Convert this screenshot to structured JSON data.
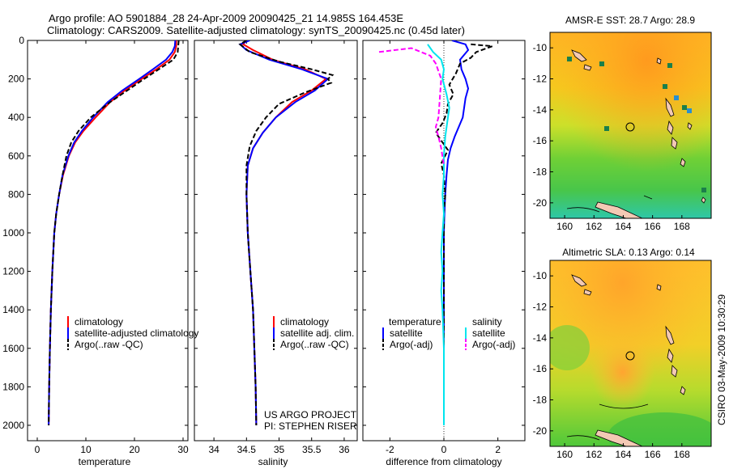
{
  "header": {
    "title_line1": "Argo profile: AO 5901884_28 24-Apr-2009 20090425_21 14.985S 164.453E",
    "title_line2": "Climatology: CARS2009. Satellite-adjusted climatology: synTS_20090425.nc (0.45d later)"
  },
  "side_label": "CSIRO 03-May-2009 10:30:29",
  "project": {
    "line1": "US ARGO PROJECT",
    "line2": "PI: STEPHEN RISER"
  },
  "colors": {
    "climatology": "#ff0000",
    "satellite": "#0000ff",
    "argo": "#000000",
    "satellite_diff_salinity": "#00e5ee",
    "argo_diff_salinity": "#ff00ff"
  },
  "chart_data": [
    {
      "type": "line",
      "id": "temperature",
      "xlabel": "temperature",
      "ylabel": "",
      "xlim": [
        -2,
        31
      ],
      "ylim": [
        2080,
        0
      ],
      "xticks": [
        "0",
        "10",
        "20",
        "30"
      ],
      "yticks": [
        "0",
        "200",
        "400",
        "600",
        "800",
        "1000",
        "1200",
        "1400",
        "1600",
        "1800",
        "2000"
      ],
      "legend": [
        {
          "label": "climatology",
          "color": "#ff0000",
          "dash": "solid"
        },
        {
          "label": "satellite-adjusted climatology",
          "color": "#0000ff",
          "dash": "solid"
        },
        {
          "label": "Argo(..raw -QC)",
          "color": "#000000",
          "dash": "dashed"
        }
      ],
      "series": [
        {
          "name": "climatology",
          "color": "#ff0000",
          "dash": "solid",
          "points": [
            [
              28.6,
              0
            ],
            [
              28.6,
              30
            ],
            [
              28.3,
              60
            ],
            [
              27.2,
              100
            ],
            [
              24.5,
              150
            ],
            [
              21.5,
              200
            ],
            [
              18,
              260
            ],
            [
              15,
              320
            ],
            [
              12,
              400
            ],
            [
              9.5,
              470
            ],
            [
              7.8,
              530
            ],
            [
              6.5,
              600
            ],
            [
              5.3,
              700
            ],
            [
              4.5,
              800
            ],
            [
              3.9,
              900
            ],
            [
              3.5,
              1000
            ],
            [
              3.1,
              1200
            ],
            [
              2.8,
              1400
            ],
            [
              2.6,
              1600
            ],
            [
              2.45,
              1800
            ],
            [
              2.35,
              2000
            ]
          ]
        },
        {
          "name": "satellite",
          "color": "#0000ff",
          "dash": "solid",
          "points": [
            [
              28.4,
              0
            ],
            [
              28.3,
              30
            ],
            [
              27.8,
              60
            ],
            [
              26.5,
              100
            ],
            [
              23.8,
              150
            ],
            [
              21,
              200
            ],
            [
              17.5,
              260
            ],
            [
              14.5,
              320
            ],
            [
              11.5,
              400
            ],
            [
              9.2,
              470
            ],
            [
              7.6,
              530
            ],
            [
              6.4,
              600
            ],
            [
              5.2,
              700
            ],
            [
              4.5,
              800
            ],
            [
              3.9,
              900
            ],
            [
              3.5,
              1000
            ],
            [
              3.1,
              1200
            ],
            [
              2.8,
              1400
            ],
            [
              2.6,
              1600
            ],
            [
              2.45,
              1800
            ],
            [
              2.35,
              2000
            ]
          ]
        },
        {
          "name": "Argo(..raw -QC)",
          "color": "#000000",
          "dash": "dashed",
          "points": [
            [
              29.1,
              0
            ],
            [
              29,
              30
            ],
            [
              28.9,
              60
            ],
            [
              28,
              100
            ],
            [
              25,
              150
            ],
            [
              22,
              200
            ],
            [
              18.5,
              260
            ],
            [
              15,
              320
            ],
            [
              11,
              400
            ],
            [
              8.5,
              470
            ],
            [
              7,
              530
            ],
            [
              6,
              600
            ],
            [
              5.2,
              700
            ],
            [
              4.5,
              800
            ],
            [
              3.9,
              900
            ],
            [
              3.5,
              1000
            ],
            [
              3.1,
              1200
            ],
            [
              2.8,
              1400
            ],
            [
              2.6,
              1600
            ],
            [
              2.45,
              1800
            ],
            [
              2.35,
              2000
            ]
          ]
        }
      ]
    },
    {
      "type": "line",
      "id": "salinity",
      "xlabel": "salinity",
      "ylabel": "",
      "xlim": [
        33.7,
        36.2
      ],
      "ylim": [
        2080,
        0
      ],
      "xticks": [
        "34",
        "34.5",
        "35",
        "35.5",
        "36"
      ],
      "legend": [
        {
          "label": "climatology",
          "color": "#ff0000",
          "dash": "solid"
        },
        {
          "label": "satellite adj. clim.",
          "color": "#0000ff",
          "dash": "solid"
        },
        {
          "label": "Argo(..raw -QC)",
          "color": "#000000",
          "dash": "dashed"
        }
      ],
      "series": [
        {
          "name": "climatology",
          "color": "#ff0000",
          "dash": "solid",
          "points": [
            [
              34.5,
              0
            ],
            [
              34.45,
              20
            ],
            [
              34.6,
              50
            ],
            [
              34.9,
              100
            ],
            [
              35.4,
              150
            ],
            [
              35.72,
              200
            ],
            [
              35.5,
              260
            ],
            [
              35.2,
              320
            ],
            [
              34.95,
              400
            ],
            [
              34.75,
              480
            ],
            [
              34.6,
              560
            ],
            [
              34.52,
              650
            ],
            [
              34.5,
              800
            ],
            [
              34.52,
              1000
            ],
            [
              34.56,
              1200
            ],
            [
              34.6,
              1400
            ],
            [
              34.62,
              1600
            ],
            [
              34.64,
              1800
            ],
            [
              34.65,
              2000
            ]
          ]
        },
        {
          "name": "satellite",
          "color": "#0000ff",
          "dash": "solid",
          "points": [
            [
              34.55,
              0
            ],
            [
              34.4,
              20
            ],
            [
              34.5,
              50
            ],
            [
              34.85,
              100
            ],
            [
              35.35,
              150
            ],
            [
              35.75,
              200
            ],
            [
              35.55,
              260
            ],
            [
              35.25,
              320
            ],
            [
              34.95,
              400
            ],
            [
              34.75,
              480
            ],
            [
              34.6,
              560
            ],
            [
              34.52,
              650
            ],
            [
              34.5,
              800
            ],
            [
              34.52,
              1000
            ],
            [
              34.56,
              1200
            ],
            [
              34.6,
              1400
            ],
            [
              34.62,
              1600
            ],
            [
              34.64,
              1800
            ],
            [
              34.65,
              2000
            ]
          ]
        },
        {
          "name": "Argo(..raw -QC)",
          "color": "#000000",
          "dash": "dashed",
          "points": [
            [
              34.5,
              0
            ],
            [
              34.4,
              20
            ],
            [
              34.55,
              60
            ],
            [
              35,
              110
            ],
            [
              35.5,
              150
            ],
            [
              35.82,
              180
            ],
            [
              35.75,
              200
            ],
            [
              35.8,
              220
            ],
            [
              35.4,
              270
            ],
            [
              35,
              330
            ],
            [
              34.8,
              400
            ],
            [
              34.65,
              470
            ],
            [
              34.55,
              550
            ],
            [
              34.5,
              650
            ],
            [
              34.5,
              800
            ],
            [
              34.52,
              1000
            ],
            [
              34.56,
              1200
            ],
            [
              34.6,
              1400
            ],
            [
              34.62,
              1600
            ],
            [
              34.64,
              1800
            ],
            [
              34.65,
              2000
            ]
          ]
        }
      ]
    },
    {
      "type": "line",
      "id": "difference",
      "xlabel": "difference from climatology",
      "ylabel": "",
      "xlim": [
        -3,
        3
      ],
      "ylim": [
        2080,
        0
      ],
      "xticks": [
        "-2",
        "0",
        "2"
      ],
      "legend_groups": [
        {
          "title": "temperature",
          "items": [
            {
              "label": "satellite",
              "color": "#0000ff",
              "dash": "solid"
            },
            {
              "label": "Argo(-adj)",
              "color": "#000000",
              "dash": "dashed"
            }
          ]
        },
        {
          "title": "salinity",
          "items": [
            {
              "label": "satellite",
              "color": "#00e5ee",
              "dash": "solid"
            },
            {
              "label": "Argo(-adj)",
              "color": "#ff00ff",
              "dash": "dashed"
            }
          ]
        }
      ],
      "series": [
        {
          "name": "temperature satellite",
          "color": "#0000ff",
          "dash": "solid",
          "points": [
            [
              0.3,
              0
            ],
            [
              0.8,
              20
            ],
            [
              0.9,
              50
            ],
            [
              0.6,
              100
            ],
            [
              0.65,
              150
            ],
            [
              0.8,
              200
            ],
            [
              0.9,
              250
            ],
            [
              0.8,
              300
            ],
            [
              0.75,
              350
            ],
            [
              0.7,
              400
            ],
            [
              0.55,
              450
            ],
            [
              0.4,
              500
            ],
            [
              0.25,
              560
            ],
            [
              0.15,
              620
            ],
            [
              0.1,
              700
            ],
            [
              0.05,
              800
            ],
            [
              0.02,
              900
            ],
            [
              0,
              1000
            ],
            [
              0,
              1200
            ],
            [
              0,
              1400
            ],
            [
              0,
              1600
            ],
            [
              0,
              1800
            ],
            [
              0,
              2000
            ]
          ]
        },
        {
          "name": "temperature Argo(-adj)",
          "color": "#000000",
          "dash": "dashed",
          "points": [
            [
              1,
              20
            ],
            [
              1.8,
              30
            ],
            [
              1.2,
              60
            ],
            [
              1,
              90
            ],
            [
              0.6,
              120
            ],
            [
              0.45,
              170
            ],
            [
              0.2,
              230
            ],
            [
              0.35,
              280
            ],
            [
              0.15,
              330
            ],
            [
              0.1,
              380
            ],
            [
              -0.05,
              430
            ],
            [
              -0.3,
              480
            ],
            [
              -0.1,
              520
            ],
            [
              0.15,
              570
            ],
            [
              -0.1,
              640
            ],
            [
              0,
              700
            ],
            [
              0.05,
              800
            ],
            [
              0,
              900
            ],
            [
              0,
              1000
            ],
            [
              0,
              1200
            ],
            [
              0,
              1400
            ],
            [
              0,
              1600
            ],
            [
              0,
              1800
            ],
            [
              0,
              2000
            ]
          ]
        },
        {
          "name": "salinity satellite",
          "color": "#00e5ee",
          "dash": "solid",
          "points": [
            [
              -0.6,
              20
            ],
            [
              -0.4,
              60
            ],
            [
              -0.1,
              100
            ],
            [
              0,
              150
            ],
            [
              -0.05,
              200
            ],
            [
              0.1,
              280
            ],
            [
              0.2,
              350
            ],
            [
              0.15,
              400
            ],
            [
              0.05,
              500
            ],
            [
              0,
              600
            ],
            [
              0,
              700
            ],
            [
              -0.05,
              800
            ],
            [
              0,
              900
            ],
            [
              -0.05,
              1000
            ],
            [
              -0.1,
              1100
            ],
            [
              -0.05,
              1200
            ],
            [
              -0.1,
              1300
            ],
            [
              -0.05,
              1400
            ],
            [
              0,
              1600
            ],
            [
              0,
              1800
            ],
            [
              0,
              2000
            ]
          ]
        },
        {
          "name": "salinity Argo(-adj)",
          "color": "#ff00ff",
          "dash": "dashed",
          "points": [
            [
              -2.4,
              60
            ],
            [
              -1.2,
              40
            ],
            [
              -0.5,
              80
            ],
            [
              -0.3,
              120
            ],
            [
              -0.1,
              200
            ],
            [
              -0.15,
              300
            ],
            [
              -0.2,
              400
            ],
            [
              -0.3,
              450
            ],
            [
              -0.2,
              500
            ],
            [
              -0.1,
              560
            ],
            [
              0,
              650
            ]
          ]
        }
      ]
    },
    {
      "type": "heatmap",
      "id": "sst_map",
      "title": "AMSR-E SST: 28.7 Argo: 28.9",
      "xlim": [
        159,
        170
      ],
      "ylim": [
        -21,
        -9
      ],
      "xticks": [
        "160",
        "162",
        "164",
        "166",
        "168"
      ],
      "yticks": [
        "-10",
        "-12",
        "-14",
        "-16",
        "-18",
        "-20"
      ],
      "float_position": [
        164.453,
        -14.985
      ]
    },
    {
      "type": "heatmap",
      "id": "sla_map",
      "title": "Altimetric SLA: 0.13 Argo: 0.14",
      "xlim": [
        159,
        170
      ],
      "ylim": [
        -21,
        -9
      ],
      "xticks": [
        "160",
        "162",
        "164",
        "166",
        "168"
      ],
      "yticks": [
        "-10",
        "-12",
        "-14",
        "-16",
        "-18",
        "-20"
      ],
      "float_position": [
        164.453,
        -14.985
      ]
    }
  ]
}
